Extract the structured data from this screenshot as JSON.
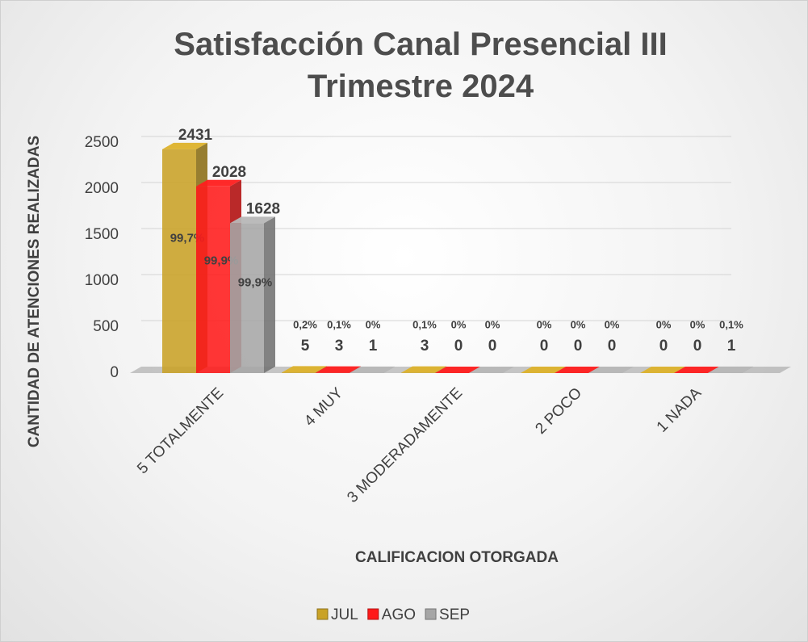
{
  "chart_data": {
    "type": "bar",
    "title": "Satisfacción Canal Presencial III Trimestre 2024",
    "x_label": "CALIFICACION OTORGADA",
    "y_label": "CANTIDAD DE ATENCIONES REALIZADAS",
    "categories": [
      "5 TOTALMENTE",
      "4 MUY",
      "3 MODERADAMENTE",
      "2 POCO",
      "1 NADA"
    ],
    "series": [
      {
        "name": "JUL",
        "color": "#c9a227",
        "values": [
          2431,
          5,
          3,
          0,
          0
        ],
        "percent_labels": [
          "99,7%",
          "0,2%",
          "0,1%",
          "0%",
          "0%"
        ]
      },
      {
        "name": "AGO",
        "color": "#ff1a1a",
        "values": [
          2028,
          3,
          0,
          0,
          0
        ],
        "percent_labels": [
          "99,9%",
          "0,1%",
          "0%",
          "0%",
          "0%"
        ]
      },
      {
        "name": "SEP",
        "color": "#a6a6a6",
        "values": [
          1628,
          1,
          0,
          0,
          1
        ],
        "percent_labels": [
          "99,9%",
          "0%",
          "0%",
          "0%",
          "0,1%"
        ]
      }
    ],
    "ylim": [
      0,
      2500
    ],
    "yticks": [
      0,
      500,
      1000,
      1500,
      2000,
      2500
    ],
    "grid": true,
    "legend": "bottom"
  }
}
